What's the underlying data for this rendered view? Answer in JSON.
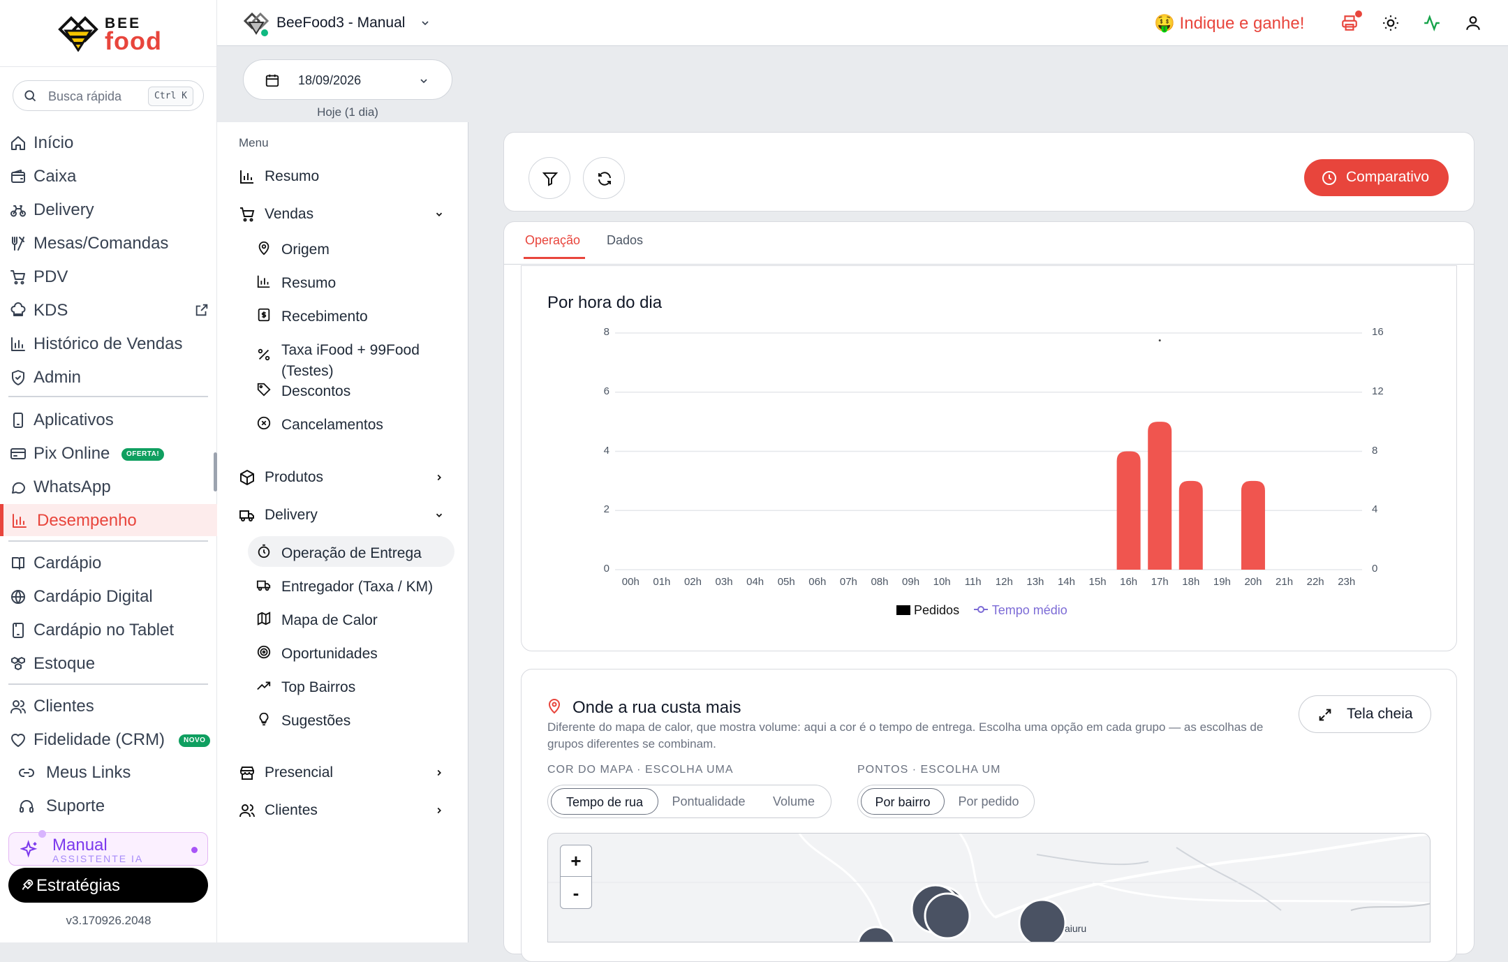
{
  "brand": {
    "line1": "BEE",
    "line2": "food",
    "accent": "#e8453c"
  },
  "search": {
    "placeholder": "Busca rápida",
    "shortcut": "Ctrl K"
  },
  "sidebar": {
    "items": [
      {
        "label": "Início",
        "icon": "home-icon"
      },
      {
        "label": "Caixa",
        "icon": "wallet-icon"
      },
      {
        "label": "Delivery",
        "icon": "bike-icon"
      },
      {
        "label": "Mesas/Comandas",
        "icon": "utensils-icon"
      },
      {
        "label": "PDV",
        "icon": "cart-icon"
      },
      {
        "label": "KDS",
        "icon": "chef-hat-icon"
      },
      {
        "label": "Histórico de Vendas",
        "icon": "bar-chart-icon"
      },
      {
        "label": "Admin",
        "icon": "shield-icon"
      },
      {
        "label": "Aplicativos",
        "icon": "smartphone-icon"
      },
      {
        "label": "Pix Online",
        "icon": "credit-card-icon",
        "badge": "OFERTA!"
      },
      {
        "label": "WhatsApp",
        "icon": "chat-bubble-icon"
      },
      {
        "label": "Desempenho",
        "icon": "bar-chart-icon",
        "active": true
      },
      {
        "label": "Cardápio",
        "icon": "book-icon"
      },
      {
        "label": "Cardápio Digital",
        "icon": "globe-icon"
      },
      {
        "label": "Cardápio no Tablet",
        "icon": "tablet-icon"
      },
      {
        "label": "Estoque",
        "icon": "boxes-icon"
      },
      {
        "label": "Clientes",
        "icon": "users-icon"
      },
      {
        "label": "Fidelidade (CRM)",
        "icon": "heart-icon",
        "badge": "NOVO"
      }
    ],
    "footer_links": [
      {
        "label": "Meus Links",
        "icon": "link-icon"
      },
      {
        "label": "Suporte",
        "icon": "headset-icon"
      }
    ],
    "manual": {
      "title": "Manual",
      "subtitle": "ASSISTENTE IA"
    },
    "strategies": "Estratégias",
    "version": "v3.170926.2048"
  },
  "topbar": {
    "store": "BeeFood3 - Manual",
    "referral": "🤑 Indique e ganhe!",
    "icons": [
      "printer-icon",
      "sun-icon",
      "activity-icon",
      "user-icon"
    ]
  },
  "date": {
    "value": "18/09/2026",
    "subtitle": "Hoje (1 dia)"
  },
  "submenu": {
    "title": "Menu",
    "resumo": "Resumo",
    "vendas": {
      "label": "Vendas",
      "children": [
        "Origem",
        "Resumo",
        "Recebimento",
        "Taxa iFood + 99Food (Testes)",
        "Descontos",
        "Cancelamentos"
      ]
    },
    "produtos": "Produtos",
    "delivery": {
      "label": "Delivery",
      "children": [
        "Operação de Entrega",
        "Entregador (Taxa / KM)",
        "Mapa de Calor",
        "Oportunidades",
        "Top Bairros",
        "Sugestões"
      ]
    },
    "presencial": "Presencial",
    "clientes": "Clientes"
  },
  "toolbar": {
    "comparativo": "Comparativo"
  },
  "tabs": [
    {
      "label": "Operação",
      "active": true
    },
    {
      "label": "Dados",
      "active": false
    }
  ],
  "chart_data": {
    "type": "bar",
    "title": "Por hora do dia",
    "categories": [
      "00h",
      "01h",
      "02h",
      "03h",
      "04h",
      "05h",
      "06h",
      "07h",
      "08h",
      "09h",
      "10h",
      "11h",
      "12h",
      "13h",
      "14h",
      "15h",
      "16h",
      "17h",
      "18h",
      "19h",
      "20h",
      "21h",
      "22h",
      "23h"
    ],
    "series": [
      {
        "name": "Pedidos",
        "axis": "left",
        "color": "#f0554f",
        "values": [
          0,
          0,
          0,
          0,
          0,
          0,
          0,
          0,
          0,
          0,
          0,
          0,
          0,
          0,
          0,
          0,
          4,
          5,
          3,
          0,
          3,
          0,
          0,
          0
        ]
      },
      {
        "name": "Tempo médio",
        "axis": "right",
        "color": "#7c6bd6",
        "values": [
          null,
          null,
          null,
          null,
          null,
          null,
          null,
          null,
          null,
          null,
          null,
          null,
          null,
          null,
          null,
          null,
          null,
          15.5,
          null,
          null,
          null,
          null,
          null,
          null
        ]
      }
    ],
    "y_left": {
      "ticks": [
        0,
        2,
        4,
        6,
        8
      ],
      "lim": [
        0,
        8
      ]
    },
    "y_right": {
      "ticks": [
        0,
        4,
        8,
        12,
        16
      ],
      "lim": [
        0,
        16
      ]
    },
    "grid": true,
    "legend_position": "bottom-center"
  },
  "heatmap": {
    "title": "Onde a rua custa mais",
    "description": "Diferente do mapa de calor, que mostra volume: aqui a cor é o tempo de entrega. Escolha uma opção em cada grupo — as escolhas de grupos diferentes se combinam.",
    "fullscreen": "Tela cheia",
    "color_group": {
      "label": "COR DO MAPA · ESCOLHA UMA",
      "options": [
        "Tempo de rua",
        "Pontualidade",
        "Volume"
      ],
      "selected": "Tempo de rua"
    },
    "points_group": {
      "label": "PONTOS · ESCOLHA UM",
      "options": [
        "Por bairro",
        "Por pedido"
      ],
      "selected": "Por bairro"
    },
    "zoom_in": "+",
    "zoom_out": "-",
    "map_label": "aiuru"
  }
}
